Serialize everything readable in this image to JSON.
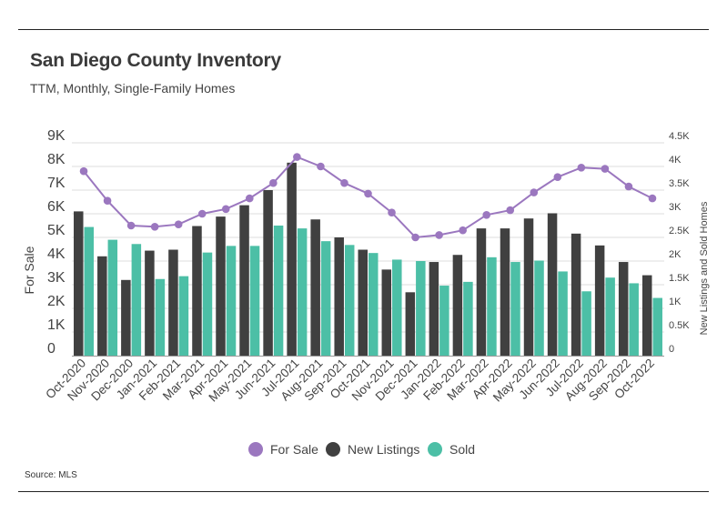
{
  "chart_data": {
    "type": "bar",
    "title": "San Diego County Inventory",
    "subtitle": "TTM, Monthly, Single-Family Homes",
    "source": "Source:  MLS",
    "categories": [
      "Oct-2020",
      "Nov-2020",
      "Dec-2020",
      "Jan-2021",
      "Feb-2021",
      "Mar-2021",
      "Apr-2021",
      "May-2021",
      "Jun-2021",
      "Jul-2021",
      "Aug-2021",
      "Sep-2021",
      "Oct-2021",
      "Nov-2021",
      "Dec-2021",
      "Jan-2022",
      "Feb-2022",
      "Mar-2022",
      "Apr-2022",
      "May-2022",
      "Jun-2022",
      "Jul-2022",
      "Aug-2022",
      "Sep-2022",
      "Oct-2022"
    ],
    "ylabel_left": "For Sale",
    "ylabel_right": "New Listings and Sold Homes",
    "ylim_left": [
      0,
      9000
    ],
    "ylim_right": [
      0,
      4500
    ],
    "yticks_left": [
      "0",
      "1K",
      "2K",
      "3K",
      "4K",
      "5K",
      "6K",
      "7K",
      "8K",
      "9K"
    ],
    "yticks_right": [
      "0",
      "0.5K",
      "1K",
      "1.5K",
      "2K",
      "2.5K",
      "3K",
      "3.5K",
      "4K",
      "4.5K"
    ],
    "series": [
      {
        "name": "For Sale",
        "kind": "line",
        "axis": "left",
        "color": "#9b77bf",
        "values": [
          7800,
          6550,
          5500,
          5450,
          5550,
          6000,
          6200,
          6650,
          7300,
          8400,
          8000,
          7300,
          6850,
          6050,
          5000,
          5100,
          5300,
          5950,
          6150,
          6900,
          7550,
          7950,
          7900,
          7150,
          6650
        ]
      },
      {
        "name": "New Listings",
        "kind": "bar",
        "axis": "right",
        "color": "#404040",
        "values": [
          3050,
          2100,
          1600,
          2220,
          2240,
          2740,
          2940,
          3180,
          3500,
          4080,
          2880,
          2500,
          2240,
          1820,
          1340,
          1980,
          2130,
          2690,
          2690,
          2900,
          3010,
          2580,
          2330,
          1980,
          1700
        ]
      },
      {
        "name": "Sold",
        "kind": "bar",
        "axis": "right",
        "color": "#4cbfa6",
        "values": [
          2720,
          2450,
          2360,
          1620,
          1680,
          2180,
          2320,
          2320,
          2750,
          2690,
          2420,
          2340,
          2170,
          2030,
          2000,
          1480,
          1560,
          2080,
          1980,
          2010,
          1780,
          1360,
          1650,
          1530,
          1220
        ]
      }
    ],
    "legend_position": "bottom-center",
    "grid": "horizontal"
  }
}
